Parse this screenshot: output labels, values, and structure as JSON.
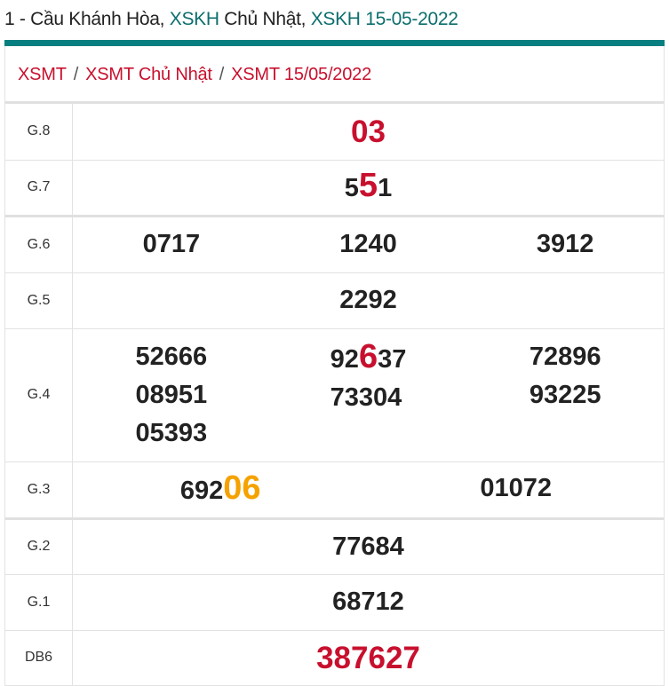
{
  "header": {
    "title_parts": [
      {
        "text": "1 - Cầu Khánh Hòa, ",
        "accent": false
      },
      {
        "text": "XSKH",
        "accent": true
      },
      {
        "text": " Chủ Nhật, ",
        "accent": false
      },
      {
        "text": "XSKH 15-05-2022",
        "accent": true
      }
    ]
  },
  "breadcrumb": [
    "XSMT",
    "XSMT Chủ Nhật",
    "XSMT 15/05/2022"
  ],
  "colors": {
    "accent_teal": "#077f80",
    "red": "#c8102e",
    "orange": "#f5a200"
  },
  "prizes": [
    {
      "label": "G.8",
      "allred": true,
      "columns": [
        [
          [
            {
              "t": "03"
            }
          ]
        ]
      ]
    },
    {
      "label": "G.7",
      "columns": [
        [
          [
            {
              "t": "5"
            },
            {
              "t": "5",
              "c": "r"
            },
            {
              "t": "1"
            }
          ]
        ]
      ]
    },
    {
      "label": "G.6",
      "columns": [
        [
          [
            {
              "t": "0717"
            }
          ]
        ],
        [
          [
            {
              "t": "1240"
            }
          ]
        ],
        [
          [
            {
              "t": "3912"
            }
          ]
        ]
      ]
    },
    {
      "label": "G.5",
      "columns": [
        [
          [
            {
              "t": "2292"
            }
          ]
        ]
      ]
    },
    {
      "label": "G.4",
      "columns": [
        [
          [
            {
              "t": "52666"
            }
          ],
          [
            {
              "t": "08951"
            }
          ],
          [
            {
              "t": "05393"
            }
          ]
        ],
        [
          [
            {
              "t": "92"
            },
            {
              "t": "6",
              "c": "r"
            },
            {
              "t": "37"
            }
          ],
          [
            {
              "t": "73304"
            }
          ]
        ],
        [
          [
            {
              "t": "72896"
            }
          ],
          [
            {
              "t": "93225"
            }
          ]
        ]
      ]
    },
    {
      "label": "G.3",
      "columns": [
        [
          [
            {
              "t": "692"
            },
            {
              "t": "06",
              "c": "o"
            }
          ]
        ],
        [
          [
            {
              "t": "01072"
            }
          ]
        ]
      ]
    },
    {
      "label": "G.2",
      "columns": [
        [
          [
            {
              "t": "77684"
            }
          ]
        ]
      ]
    },
    {
      "label": "G.1",
      "columns": [
        [
          [
            {
              "t": "68712"
            }
          ]
        ]
      ]
    },
    {
      "label": "DB6",
      "allred": true,
      "columns": [
        [
          [
            {
              "t": "387627"
            }
          ]
        ]
      ]
    }
  ]
}
